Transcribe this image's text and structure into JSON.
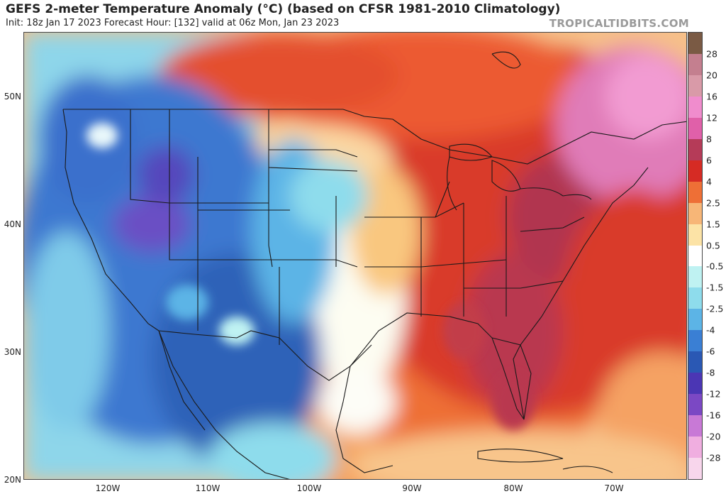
{
  "header": {
    "title": "GEFS 2-meter Temperature Anomaly (°C) (based on CFSR 1981-2010 Climatology)",
    "subtitle": "Init: 18z Jan 17 2023   Forecast Hour: [132]   valid at 06z Mon, Jan 23 2023",
    "credit": "TROPICALTIDBITS.COM"
  },
  "map": {
    "lat_labels": [
      "50N",
      "40N",
      "30N",
      "20N"
    ],
    "lon_labels": [
      "120W",
      "110W",
      "100W",
      "90W",
      "80W",
      "70W"
    ],
    "regions": [
      {
        "name": "west-cold-anomaly",
        "color": "#3565c0"
      },
      {
        "name": "west-very-cold-core",
        "color": "#6b4fc4"
      },
      {
        "name": "plains-neutral",
        "color": "#fdfdf2"
      },
      {
        "name": "east-warm-anomaly",
        "color": "#d93a2b"
      },
      {
        "name": "southeast-very-warm",
        "color": "#b9384f"
      },
      {
        "name": "northeast-pink-warm",
        "color": "#e97bbf"
      }
    ]
  },
  "colorbar": {
    "labels": [
      "28",
      "20",
      "16",
      "12",
      "8",
      "6",
      "4",
      "2.5",
      "1.5",
      "0.5",
      "-0.5",
      "-1.5",
      "-2.5",
      "-4",
      "-6",
      "-8",
      "-12",
      "-16",
      "-20",
      "-28"
    ],
    "colors": [
      "#7a5a44",
      "#c47f8f",
      "#d99aa8",
      "#f08ccd",
      "#e060a9",
      "#b53b58",
      "#d62b24",
      "#ee6f36",
      "#f7b677",
      "#fce3a6",
      "#ffffff",
      "#bff2f2",
      "#8edcec",
      "#5cb4e6",
      "#3a7fd4",
      "#2a58b4",
      "#4b36b4",
      "#7b48c4",
      "#c879d6",
      "#f0aee0",
      "#f8d6ec"
    ]
  }
}
